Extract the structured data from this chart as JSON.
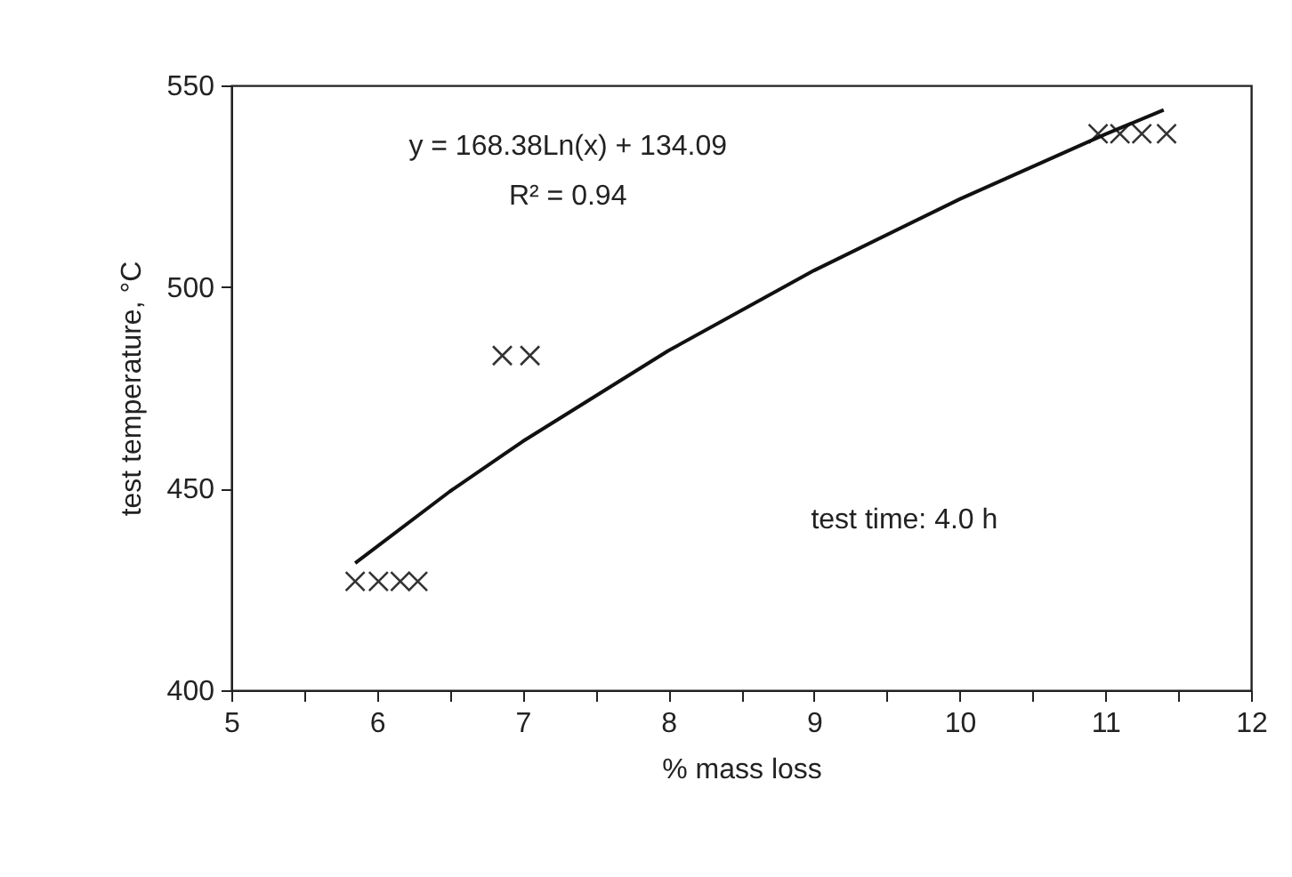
{
  "chart_data": {
    "type": "scatter",
    "xlabel": "% mass loss",
    "ylabel": "test temperature, °C",
    "xlim": [
      5,
      12
    ],
    "ylim": [
      400,
      550
    ],
    "xticks": [
      5,
      {
        "value": 5.5,
        "label": null
      },
      6,
      {
        "value": 6.5,
        "label": null
      },
      7,
      {
        "value": 7.5,
        "label": null
      },
      8,
      {
        "value": 8.5,
        "label": null
      },
      9,
      {
        "value": 9.5,
        "label": null
      },
      10,
      {
        "value": 10.5,
        "label": null
      },
      11,
      {
        "value": 11.5,
        "label": null
      },
      12
    ],
    "yticks": [
      400,
      450,
      500,
      550
    ],
    "grid": false,
    "annotations": [
      "y = 168.38Ln(x) + 134.09",
      "R² = 0.94",
      "test time: 4.0 h"
    ],
    "series": [
      {
        "marker": "cross",
        "color": "#333333",
        "x": [
          5.85,
          6.01,
          6.16,
          6.28,
          6.86,
          7.05,
          10.95,
          11.1,
          11.25,
          11.42
        ],
        "values": [
          427,
          427,
          427,
          427,
          483,
          483,
          538,
          538,
          538,
          538
        ]
      },
      {
        "type": "line",
        "marker": "none",
        "line_style": "solid",
        "color": "#111111",
        "x": [
          5.85,
          6.5,
          7,
          8,
          9,
          10,
          11,
          11.4
        ],
        "values": [
          431.5,
          449.3,
          461.7,
          484.2,
          504.1,
          521.8,
          537.9,
          543.9
        ]
      }
    ]
  }
}
